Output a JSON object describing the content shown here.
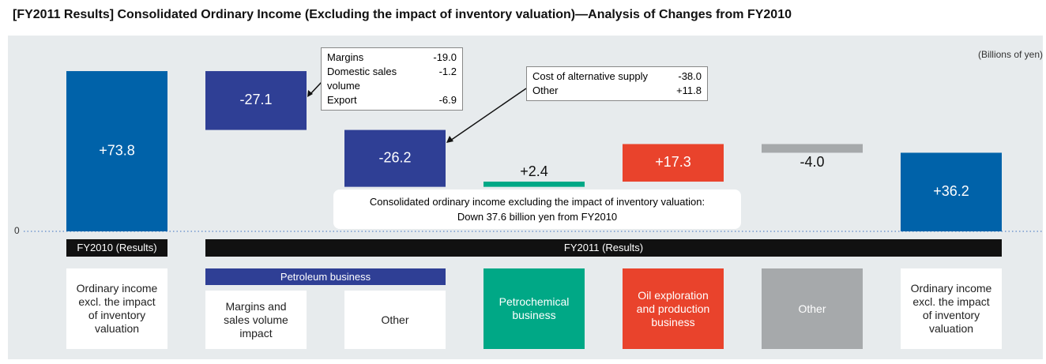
{
  "chart_data": {
    "type": "waterfall",
    "title": "[FY2011 Results] Consolidated Ordinary Income (Excluding the impact of inventory valuation)—Analysis of Changes from FY2010",
    "unit": "(Billions of yen)",
    "categories": [
      "Ordinary income excl. the impact of inventory valuation",
      "Margins and sales volume impact",
      "Other",
      "Petrochemical business",
      "Oil exploration and production business",
      "Other",
      "Ordinary income excl. the impact of inventory valuation"
    ],
    "values": [
      73.8,
      -27.1,
      -26.2,
      2.4,
      17.3,
      -4.0,
      36.2
    ],
    "value_labels": [
      "+73.8",
      "-27.1",
      "-26.2",
      "+2.4",
      "+17.3",
      "-4.0",
      "+36.2"
    ],
    "colors": [
      "#0062a9",
      "#2f3f95",
      "#2f3f95",
      "#00a886",
      "#e9432c",
      "#a6a9ab",
      "#0062a9"
    ],
    "groups": [
      "FY2010 (Results)",
      "FY2011 (Results)",
      "Petroleum business"
    ],
    "ylim": [
      0,
      80
    ],
    "yticks": [
      0
    ],
    "callouts": [
      {
        "items": [
          {
            "label": "Margins",
            "value": "-19.0"
          },
          {
            "label": "Domestic sales volume",
            "value": "-1.2"
          },
          {
            "label": "Export",
            "value": "-6.9"
          }
        ]
      },
      {
        "items": [
          {
            "label": "Cost of alternative supply",
            "value": "-38.0"
          },
          {
            "label": "Other",
            "value": "+11.8"
          }
        ]
      }
    ],
    "note": [
      "Consolidated ordinary income excluding the impact of inventory valuation:",
      "Down 37.6 billion yen from FY2010"
    ]
  }
}
